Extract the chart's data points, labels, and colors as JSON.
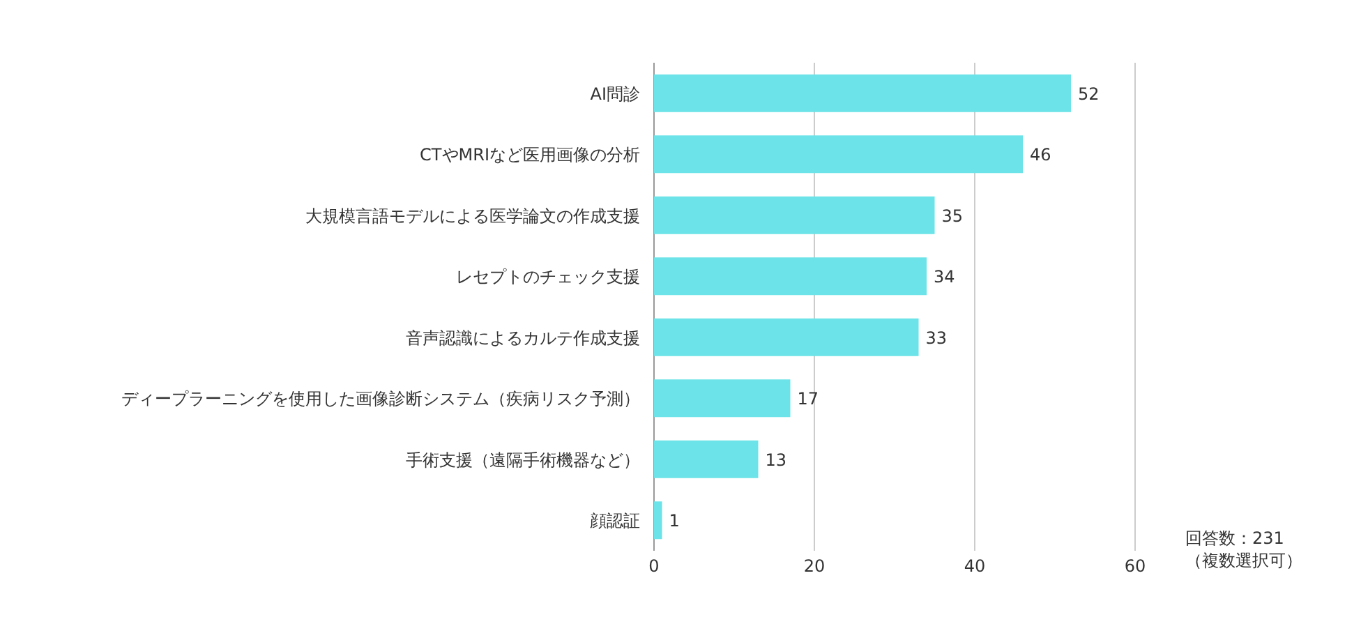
{
  "chart_data": {
    "type": "bar",
    "orientation": "horizontal",
    "categories": [
      "AI問診",
      "CTやMRIなど医用画像の分析",
      "大規模言語モデルによる医学論文の作成支援",
      "レセプトのチェック支援",
      "音声認識によるカルテ作成支援",
      "ディープラーニングを使用した画像診断システム（疾病リスク予測）",
      "手術支援（遠隔手術機器など）",
      "顔認証"
    ],
    "values": [
      52,
      46,
      35,
      34,
      33,
      17,
      13,
      1
    ],
    "color": "#6be3e8",
    "xlim": [
      0,
      60
    ],
    "xticks": [
      0,
      20,
      40,
      60
    ],
    "grid": "x",
    "data_labels": true,
    "annotations": [
      "回答数：231",
      "（複数選択可）"
    ]
  }
}
